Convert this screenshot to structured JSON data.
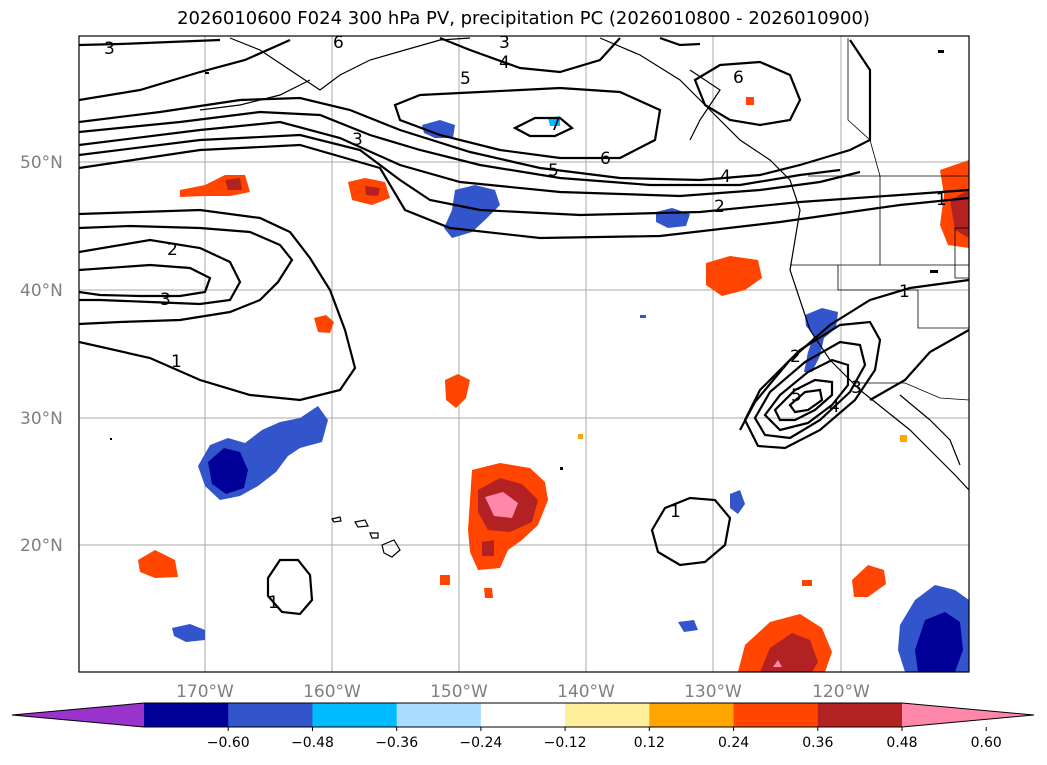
{
  "title": "2026010600 F024 300 hPa PV, precipitation PC (2026010800 - 2026010900)",
  "map": {
    "lat_labels": [
      "50°N",
      "40°N",
      "30°N",
      "20°N"
    ],
    "lon_labels": [
      "170°W",
      "160°W",
      "150°W",
      "140°W",
      "130°W",
      "120°W"
    ],
    "contour_labels": [
      "3",
      "6",
      "3",
      "4",
      "5",
      "6",
      "7",
      "3",
      "5",
      "6",
      "4",
      "2",
      "1",
      "2",
      "3",
      "1",
      "1",
      "2",
      "5",
      "4",
      "3",
      "1",
      "1"
    ]
  },
  "colorbar": {
    "colors": [
      "#9933cc",
      "#000099",
      "#3355cc",
      "#00bbff",
      "#aaddff",
      "#ffffff",
      "#ffee99",
      "#ffa500",
      "#ff4500",
      "#b22222",
      "#ff88aa"
    ],
    "ticks": [
      "−0.60",
      "−0.48",
      "−0.36",
      "−0.24",
      "−0.12",
      "0.12",
      "0.24",
      "0.36",
      "0.48",
      "0.60"
    ]
  }
}
